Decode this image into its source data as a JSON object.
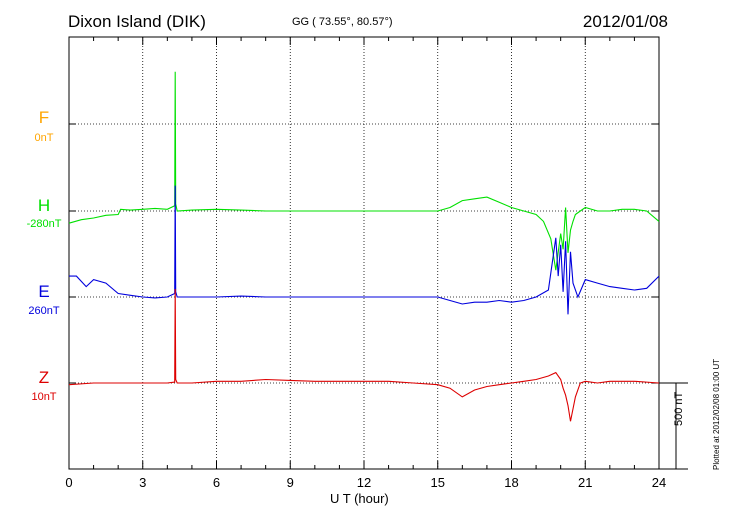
{
  "header": {
    "station": "Dixon Island (DIK)",
    "coords": "GG ( 73.55°,  80.57°)",
    "date": "2012/01/08"
  },
  "components": [
    {
      "name": "F",
      "baseline": "0nT",
      "color": "#ffa500"
    },
    {
      "name": "H",
      "baseline": "-280nT",
      "color": "#00e000"
    },
    {
      "name": "E",
      "baseline": "260nT",
      "color": "#0000dd"
    },
    {
      "name": "Z",
      "baseline": "10nT",
      "color": "#dd0000"
    }
  ],
  "scale": {
    "label": "500 nT"
  },
  "footer": {
    "plotted": "Plotted at 2012/02/08 01:00 UT"
  },
  "chart_data": {
    "type": "line",
    "xlabel": "U T (hour)",
    "xlim": [
      0,
      24
    ],
    "xticks": [
      0,
      3,
      6,
      9,
      12,
      15,
      18,
      21,
      24
    ],
    "grid": true,
    "series": [
      {
        "name": "F",
        "color": "#ffa500",
        "x": [],
        "y": []
      },
      {
        "name": "H",
        "color": "#00e000",
        "x": [
          0,
          0.5,
          1,
          1.5,
          2,
          2.1,
          2.5,
          3,
          3.5,
          4,
          4.3,
          4.32,
          4.34,
          4.4,
          5,
          6,
          7,
          8,
          9,
          10,
          11,
          12,
          13,
          14,
          15,
          15.5,
          16,
          16.5,
          17,
          17.5,
          18,
          18.5,
          19,
          19.3,
          19.6,
          19.8,
          20.0,
          20.1,
          20.2,
          20.3,
          20.4,
          20.5,
          20.6,
          20.8,
          21,
          21.5,
          22,
          22.5,
          23,
          23.5,
          24
        ],
        "y": [
          -70,
          -50,
          -40,
          -25,
          -20,
          10,
          5,
          10,
          15,
          10,
          30,
          800,
          40,
          0,
          5,
          10,
          5,
          0,
          0,
          0,
          0,
          0,
          0,
          0,
          0,
          20,
          60,
          70,
          80,
          50,
          20,
          0,
          -20,
          -60,
          -160,
          -340,
          -130,
          -220,
          20,
          -240,
          -110,
          -60,
          -20,
          0,
          20,
          0,
          0,
          10,
          10,
          0,
          -60
        ]
      },
      {
        "name": "E",
        "color": "#0000dd",
        "x": [
          0,
          0.3,
          0.7,
          1,
          1.5,
          2,
          2.5,
          3,
          3.5,
          4,
          4.3,
          4.32,
          4.34,
          4.4,
          5,
          6,
          7,
          8,
          9,
          10,
          11,
          12,
          13,
          14,
          15,
          15.5,
          16,
          16.5,
          17,
          17.5,
          18,
          18.5,
          19,
          19.5,
          19.8,
          19.9,
          20.0,
          20.1,
          20.2,
          20.3,
          20.4,
          20.5,
          20.7,
          21,
          21.5,
          22,
          22.5,
          23,
          23.5,
          24
        ],
        "y": [
          120,
          120,
          60,
          100,
          80,
          20,
          10,
          0,
          -5,
          0,
          20,
          640,
          30,
          0,
          0,
          0,
          5,
          0,
          0,
          0,
          0,
          0,
          0,
          0,
          0,
          -20,
          -40,
          -30,
          -30,
          -20,
          -30,
          -20,
          0,
          40,
          340,
          120,
          300,
          30,
          320,
          -100,
          260,
          80,
          0,
          100,
          80,
          60,
          50,
          40,
          50,
          120
        ]
      },
      {
        "name": "Z",
        "color": "#dd0000",
        "x": [
          0,
          1,
          2,
          3,
          4,
          4.3,
          4.32,
          4.34,
          4.4,
          5,
          6,
          7,
          8,
          9,
          10,
          11,
          12,
          13,
          14,
          15,
          15.5,
          16,
          16.5,
          17,
          17.5,
          18,
          18.5,
          19,
          19.5,
          19.8,
          20.0,
          20.1,
          20.2,
          20.3,
          20.4,
          20.6,
          20.8,
          21,
          21.5,
          22,
          23,
          24
        ],
        "y": [
          -10,
          0,
          0,
          0,
          0,
          5,
          540,
          20,
          0,
          0,
          10,
          10,
          20,
          15,
          10,
          10,
          10,
          10,
          0,
          -10,
          -30,
          -80,
          -40,
          -20,
          -10,
          0,
          10,
          20,
          40,
          60,
          20,
          -30,
          -70,
          -130,
          -220,
          -80,
          0,
          10,
          0,
          10,
          10,
          0
        ]
      }
    ]
  }
}
